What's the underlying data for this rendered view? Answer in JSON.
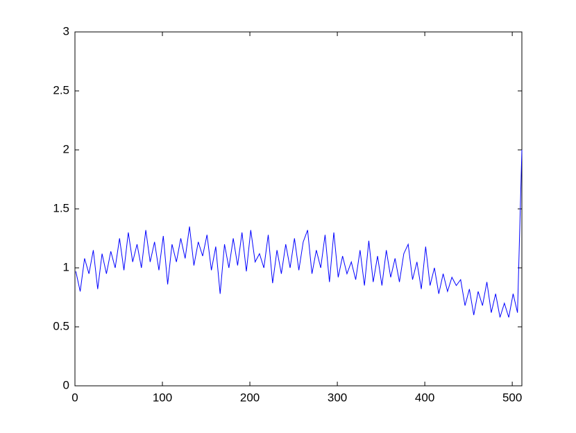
{
  "chart_data": {
    "type": "line",
    "color": "#0000ff",
    "x": [
      1,
      6,
      11,
      16,
      21,
      26,
      31,
      36,
      41,
      46,
      51,
      56,
      61,
      66,
      71,
      76,
      81,
      86,
      91,
      96,
      101,
      106,
      111,
      116,
      121,
      126,
      131,
      136,
      141,
      146,
      151,
      156,
      161,
      166,
      171,
      176,
      181,
      186,
      191,
      196,
      201,
      206,
      211,
      216,
      221,
      226,
      231,
      236,
      241,
      246,
      251,
      256,
      261,
      266,
      271,
      276,
      281,
      286,
      291,
      296,
      301,
      306,
      311,
      316,
      321,
      326,
      331,
      336,
      341,
      346,
      351,
      356,
      361,
      366,
      371,
      376,
      381,
      386,
      391,
      396,
      401,
      406,
      411,
      416,
      421,
      426,
      431,
      436,
      441,
      446,
      451,
      456,
      461,
      466,
      471,
      476,
      481,
      486,
      491,
      496,
      501,
      506,
      511
    ],
    "values": [
      0.97,
      0.8,
      1.08,
      0.95,
      1.15,
      0.82,
      1.12,
      0.95,
      1.14,
      1.0,
      1.25,
      0.98,
      1.3,
      1.05,
      1.2,
      1.0,
      1.32,
      1.05,
      1.22,
      0.98,
      1.27,
      0.86,
      1.2,
      1.05,
      1.25,
      1.08,
      1.35,
      1.02,
      1.22,
      1.1,
      1.28,
      0.98,
      1.18,
      0.78,
      1.2,
      1.0,
      1.25,
      1.02,
      1.3,
      0.97,
      1.32,
      1.05,
      1.12,
      1.0,
      1.28,
      0.87,
      1.15,
      0.95,
      1.2,
      1.0,
      1.25,
      0.98,
      1.22,
      1.32,
      0.95,
      1.15,
      1.0,
      1.28,
      0.88,
      1.3,
      0.92,
      1.1,
      0.95,
      1.05,
      0.9,
      1.15,
      0.85,
      1.23,
      0.88,
      1.1,
      0.85,
      1.15,
      0.92,
      1.08,
      0.88,
      1.12,
      1.2,
      0.9,
      1.05,
      0.82,
      1.18,
      0.85,
      1.0,
      0.78,
      0.95,
      0.8,
      0.92,
      0.85,
      0.9,
      0.68,
      0.82,
      0.6,
      0.8,
      0.68,
      0.88,
      0.62,
      0.78,
      0.58,
      0.7,
      0.58,
      0.78,
      0.62,
      2.0
    ],
    "xlim": [
      0,
      511
    ],
    "ylim": [
      0,
      3
    ],
    "xticks": [
      0,
      100,
      200,
      300,
      400,
      500
    ],
    "yticks": [
      0,
      0.5,
      1,
      1.5,
      2,
      2.5,
      3
    ],
    "grid": false
  }
}
